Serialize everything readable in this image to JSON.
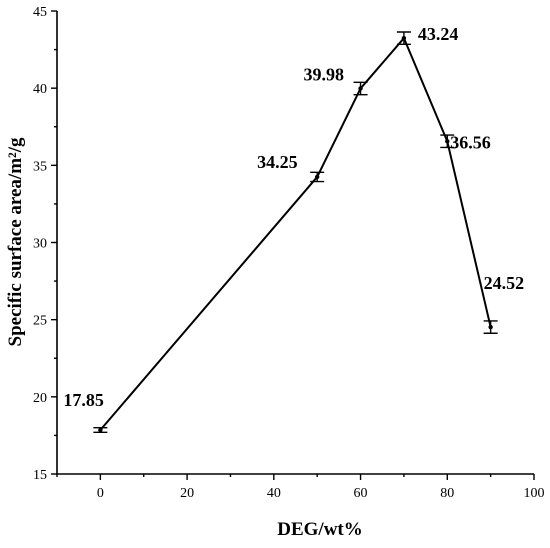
{
  "chart_data": {
    "type": "line",
    "xlabel": "DEG/wt%",
    "ylabel": "Specific surface area/m²/g",
    "xlim": [
      -10,
      100
    ],
    "ylim": [
      15,
      45
    ],
    "x_ticks": [
      0,
      20,
      40,
      60,
      80,
      100
    ],
    "y_ticks": [
      15,
      20,
      25,
      30,
      35,
      40,
      45
    ],
    "grid": false,
    "series": [
      {
        "x": [
          0,
          50,
          60,
          70,
          80,
          90
        ],
        "y": [
          17.85,
          34.25,
          39.98,
          43.24,
          36.56,
          24.52
        ],
        "y_error": [
          0.15,
          0.3,
          0.4,
          0.4,
          0.4,
          0.4
        ],
        "labels": [
          "17.85",
          "34.25",
          "39.98",
          "43.24",
          "36.56",
          "24.52"
        ]
      }
    ],
    "color": "#000000"
  }
}
